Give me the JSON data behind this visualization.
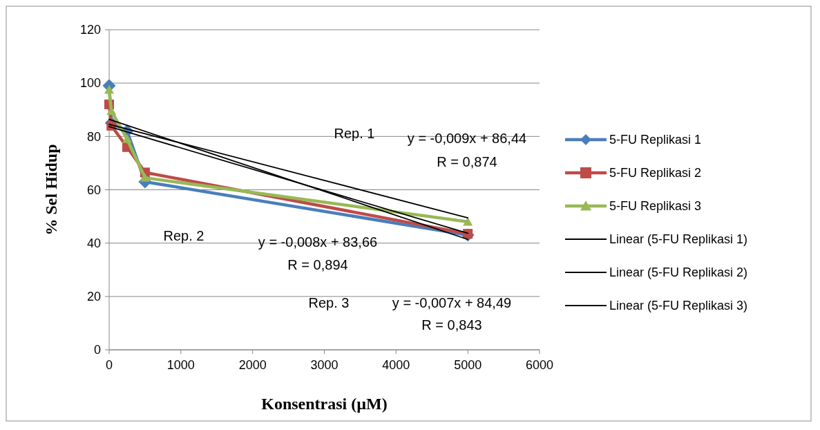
{
  "chart_data": {
    "type": "line",
    "xlabel": "Konsentrasi (µM)",
    "ylabel": "% Sel Hidup",
    "xlim": [
      0,
      6000
    ],
    "xticks": [
      0,
      1000,
      2000,
      3000,
      4000,
      5000,
      6000
    ],
    "ylim": [
      0,
      120
    ],
    "yticks": [
      0,
      20,
      40,
      60,
      80,
      100,
      120
    ],
    "grid": "y",
    "legend": "right",
    "series": [
      {
        "name": "5-FU Replikasi 1",
        "color": "#4a7ebb",
        "marker": "diamond",
        "x": [
          0,
          31.25,
          250,
          500,
          5000
        ],
        "values": [
          99,
          85,
          82,
          63,
          43
        ]
      },
      {
        "name": "5-FU Replikasi 2",
        "color": "#be4b48",
        "marker": "square",
        "x": [
          0,
          31.25,
          250,
          500,
          5000
        ],
        "values": [
          92,
          84,
          76,
          66.5,
          43.5
        ]
      },
      {
        "name": "5-FU Replikasi 3",
        "color": "#98b954",
        "marker": "triangle",
        "x": [
          0,
          31.25,
          250,
          500,
          5000
        ],
        "values": [
          97.5,
          89.5,
          79,
          64.5,
          48
        ]
      },
      {
        "name": "Linear (5-FU Replikasi 1)",
        "color": "#000000",
        "marker": "none",
        "x": [
          0,
          5000
        ],
        "values": [
          86.4,
          41.4
        ]
      },
      {
        "name": "Linear (5-FU Replikasi 2)",
        "color": "#000000",
        "marker": "none",
        "x": [
          0,
          5000
        ],
        "values": [
          83.7,
          43.7
        ]
      },
      {
        "name": "Linear (5-FU Replikasi 3)",
        "color": "#000000",
        "marker": "none",
        "x": [
          0,
          5000
        ],
        "values": [
          84.5,
          49.5
        ]
      }
    ],
    "annotations": [
      "Rep. 1",
      "y = -0,009x + 86,44",
      "R = 0,874",
      "Rep. 2",
      "y = -0,008x + 83,66",
      "R = 0,894",
      "Rep. 3",
      "y = -0,007x + 84,49",
      "R = 0,843"
    ]
  }
}
